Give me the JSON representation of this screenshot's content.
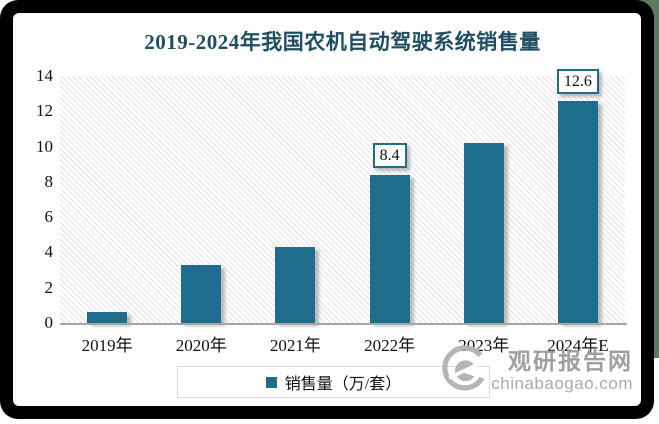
{
  "chart_data": {
    "type": "bar",
    "title": "2019-2024年我国农机自动驾驶系统销售量",
    "categories": [
      "2019年",
      "2020年",
      "2021年",
      "2022年",
      "2023年",
      "2024年E"
    ],
    "series": [
      {
        "name": "销售量（万/套）",
        "values": [
          0.6,
          3.3,
          4.3,
          8.4,
          10.2,
          12.6
        ]
      }
    ],
    "value_labels": [
      "",
      "",
      "",
      "8.4",
      "",
      "12.6"
    ],
    "ylim": [
      0,
      14
    ],
    "yticks": [
      0,
      2,
      4,
      6,
      8,
      10,
      12,
      14
    ],
    "xlabel": "",
    "ylabel": "",
    "grid": false,
    "legend_position": "bottom",
    "bar_color": "#1f6d8c",
    "title_color": "#1f4e63",
    "plot_hatch": "light-diagonal-lines"
  },
  "legend": {
    "label": "销售量（万/套）",
    "swatch_color": "#1f6d8c"
  },
  "watermark": {
    "site_name": "观研报告网",
    "site_url": "chinabaogao.com",
    "logo_icon": "swirl-g-logo"
  },
  "frame": {
    "color": "#000000",
    "page_edge_color": "#5d7a64"
  }
}
